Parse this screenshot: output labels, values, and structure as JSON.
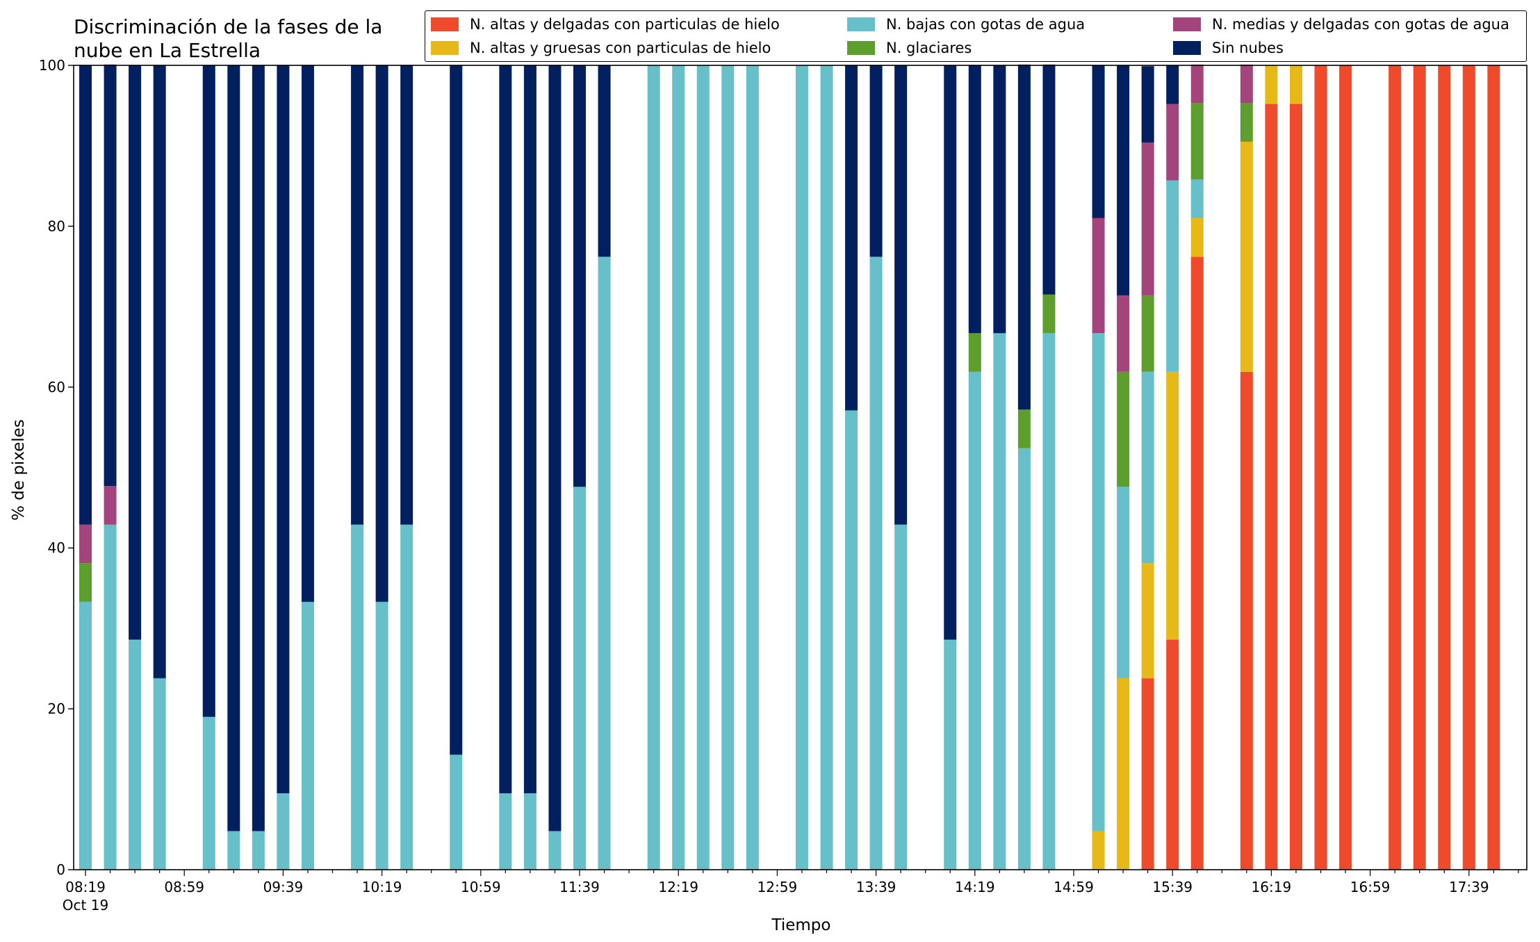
{
  "chart_data": {
    "type": "bar",
    "stacked": true,
    "title": "Discriminación de la fases de la\nnube en La Estrella",
    "xlabel": "Tiempo",
    "ylabel": "% de pixeles",
    "ylim": [
      0,
      100
    ],
    "yticks": [
      0,
      20,
      40,
      60,
      80,
      100
    ],
    "x_start_time": "08:19",
    "x_interval_minutes": 10,
    "x_tick_labels": [
      {
        "time": "08:19",
        "sub": "Oct 19"
      },
      {
        "time": "08:59"
      },
      {
        "time": "09:39"
      },
      {
        "time": "10:19"
      },
      {
        "time": "10:59"
      },
      {
        "time": "11:39"
      },
      {
        "time": "12:19"
      },
      {
        "time": "12:59"
      },
      {
        "time": "13:39"
      },
      {
        "time": "14:19"
      },
      {
        "time": "14:59"
      },
      {
        "time": "15:39"
      },
      {
        "time": "16:19"
      },
      {
        "time": "16:59"
      },
      {
        "time": "17:39"
      }
    ],
    "legend_position": "top-right",
    "grid": false,
    "series": [
      {
        "name": "N. altas y delgadas con particulas de hielo",
        "color": "#ef4a2c",
        "values": [
          0,
          0,
          0,
          0,
          null,
          0,
          0,
          0,
          0,
          0,
          null,
          0,
          0,
          0,
          null,
          0,
          null,
          0,
          0,
          0,
          0,
          0,
          null,
          0,
          0,
          0,
          0,
          0,
          null,
          0,
          0,
          0,
          0,
          0,
          null,
          0,
          0,
          0,
          0,
          0,
          null,
          0,
          0,
          23.8,
          28.6,
          76.2,
          null,
          61.9,
          95.2,
          95.2,
          100,
          100,
          null,
          100,
          100,
          100,
          100,
          100
        ]
      },
      {
        "name": "N. altas y gruesas con particulas de hielo",
        "color": "#e6b818",
        "values": [
          0,
          0,
          0,
          0,
          null,
          0,
          0,
          0,
          0,
          0,
          null,
          0,
          0,
          0,
          null,
          0,
          null,
          0,
          0,
          0,
          0,
          0,
          null,
          0,
          0,
          0,
          0,
          0,
          null,
          0,
          0,
          0,
          0,
          0,
          null,
          0,
          0,
          0,
          0,
          0,
          null,
          4.8,
          23.8,
          14.3,
          33.3,
          4.8,
          null,
          28.6,
          4.8,
          4.8,
          0,
          0,
          null,
          0,
          0,
          0,
          0,
          0
        ]
      },
      {
        "name": "N. bajas con gotas de agua",
        "color": "#67bfc9",
        "values": [
          33.3,
          42.9,
          28.6,
          23.8,
          null,
          19.0,
          4.8,
          4.8,
          9.5,
          33.3,
          null,
          42.9,
          33.3,
          42.9,
          null,
          14.3,
          null,
          9.5,
          9.5,
          4.8,
          47.6,
          76.2,
          null,
          100,
          100,
          100,
          100,
          100,
          null,
          100,
          100,
          57.1,
          76.2,
          42.9,
          null,
          28.6,
          61.9,
          66.7,
          52.4,
          66.7,
          null,
          61.9,
          23.8,
          23.8,
          23.8,
          4.8,
          null,
          0,
          0,
          0,
          0,
          0,
          null,
          0,
          0,
          0,
          0,
          0
        ]
      },
      {
        "name": "N. glaciares",
        "color": "#5d9e2f",
        "values": [
          4.8,
          0,
          0,
          0,
          null,
          0,
          0,
          0,
          0,
          0,
          null,
          0,
          0,
          0,
          null,
          0,
          null,
          0,
          0,
          0,
          0,
          0,
          null,
          0,
          0,
          0,
          0,
          0,
          null,
          0,
          0,
          0,
          0,
          0,
          null,
          0,
          4.8,
          0,
          4.8,
          4.8,
          null,
          0,
          14.3,
          9.5,
          0,
          9.5,
          null,
          4.8,
          0,
          0,
          0,
          0,
          null,
          0,
          0,
          0,
          0,
          0
        ]
      },
      {
        "name": "N. medias y delgadas con gotas de agua",
        "color": "#a3447c",
        "values": [
          4.8,
          4.8,
          0,
          0,
          null,
          0,
          0,
          0,
          0,
          0,
          null,
          0,
          0,
          0,
          null,
          0,
          null,
          0,
          0,
          0,
          0,
          0,
          null,
          0,
          0,
          0,
          0,
          0,
          null,
          0,
          0,
          0,
          0,
          0,
          null,
          0,
          0,
          0,
          0,
          0,
          null,
          14.3,
          9.5,
          19.0,
          9.5,
          4.8,
          null,
          4.8,
          0,
          0,
          0,
          0,
          null,
          0,
          0,
          0,
          0,
          0
        ]
      },
      {
        "name": "Sin nubes",
        "color": "#021f60",
        "values": [
          57.1,
          52.4,
          71.4,
          76.2,
          null,
          81.0,
          95.2,
          95.2,
          90.5,
          66.7,
          null,
          57.1,
          66.7,
          57.1,
          null,
          85.7,
          null,
          90.5,
          90.5,
          95.2,
          52.4,
          23.8,
          null,
          0,
          0,
          0,
          0,
          0,
          null,
          0,
          0,
          42.9,
          23.8,
          57.1,
          null,
          71.4,
          33.3,
          33.3,
          42.9,
          28.6,
          null,
          19.0,
          28.6,
          9.5,
          4.8,
          0,
          null,
          0,
          0,
          0,
          0,
          0,
          null,
          0,
          0,
          0,
          0,
          0
        ]
      }
    ]
  }
}
